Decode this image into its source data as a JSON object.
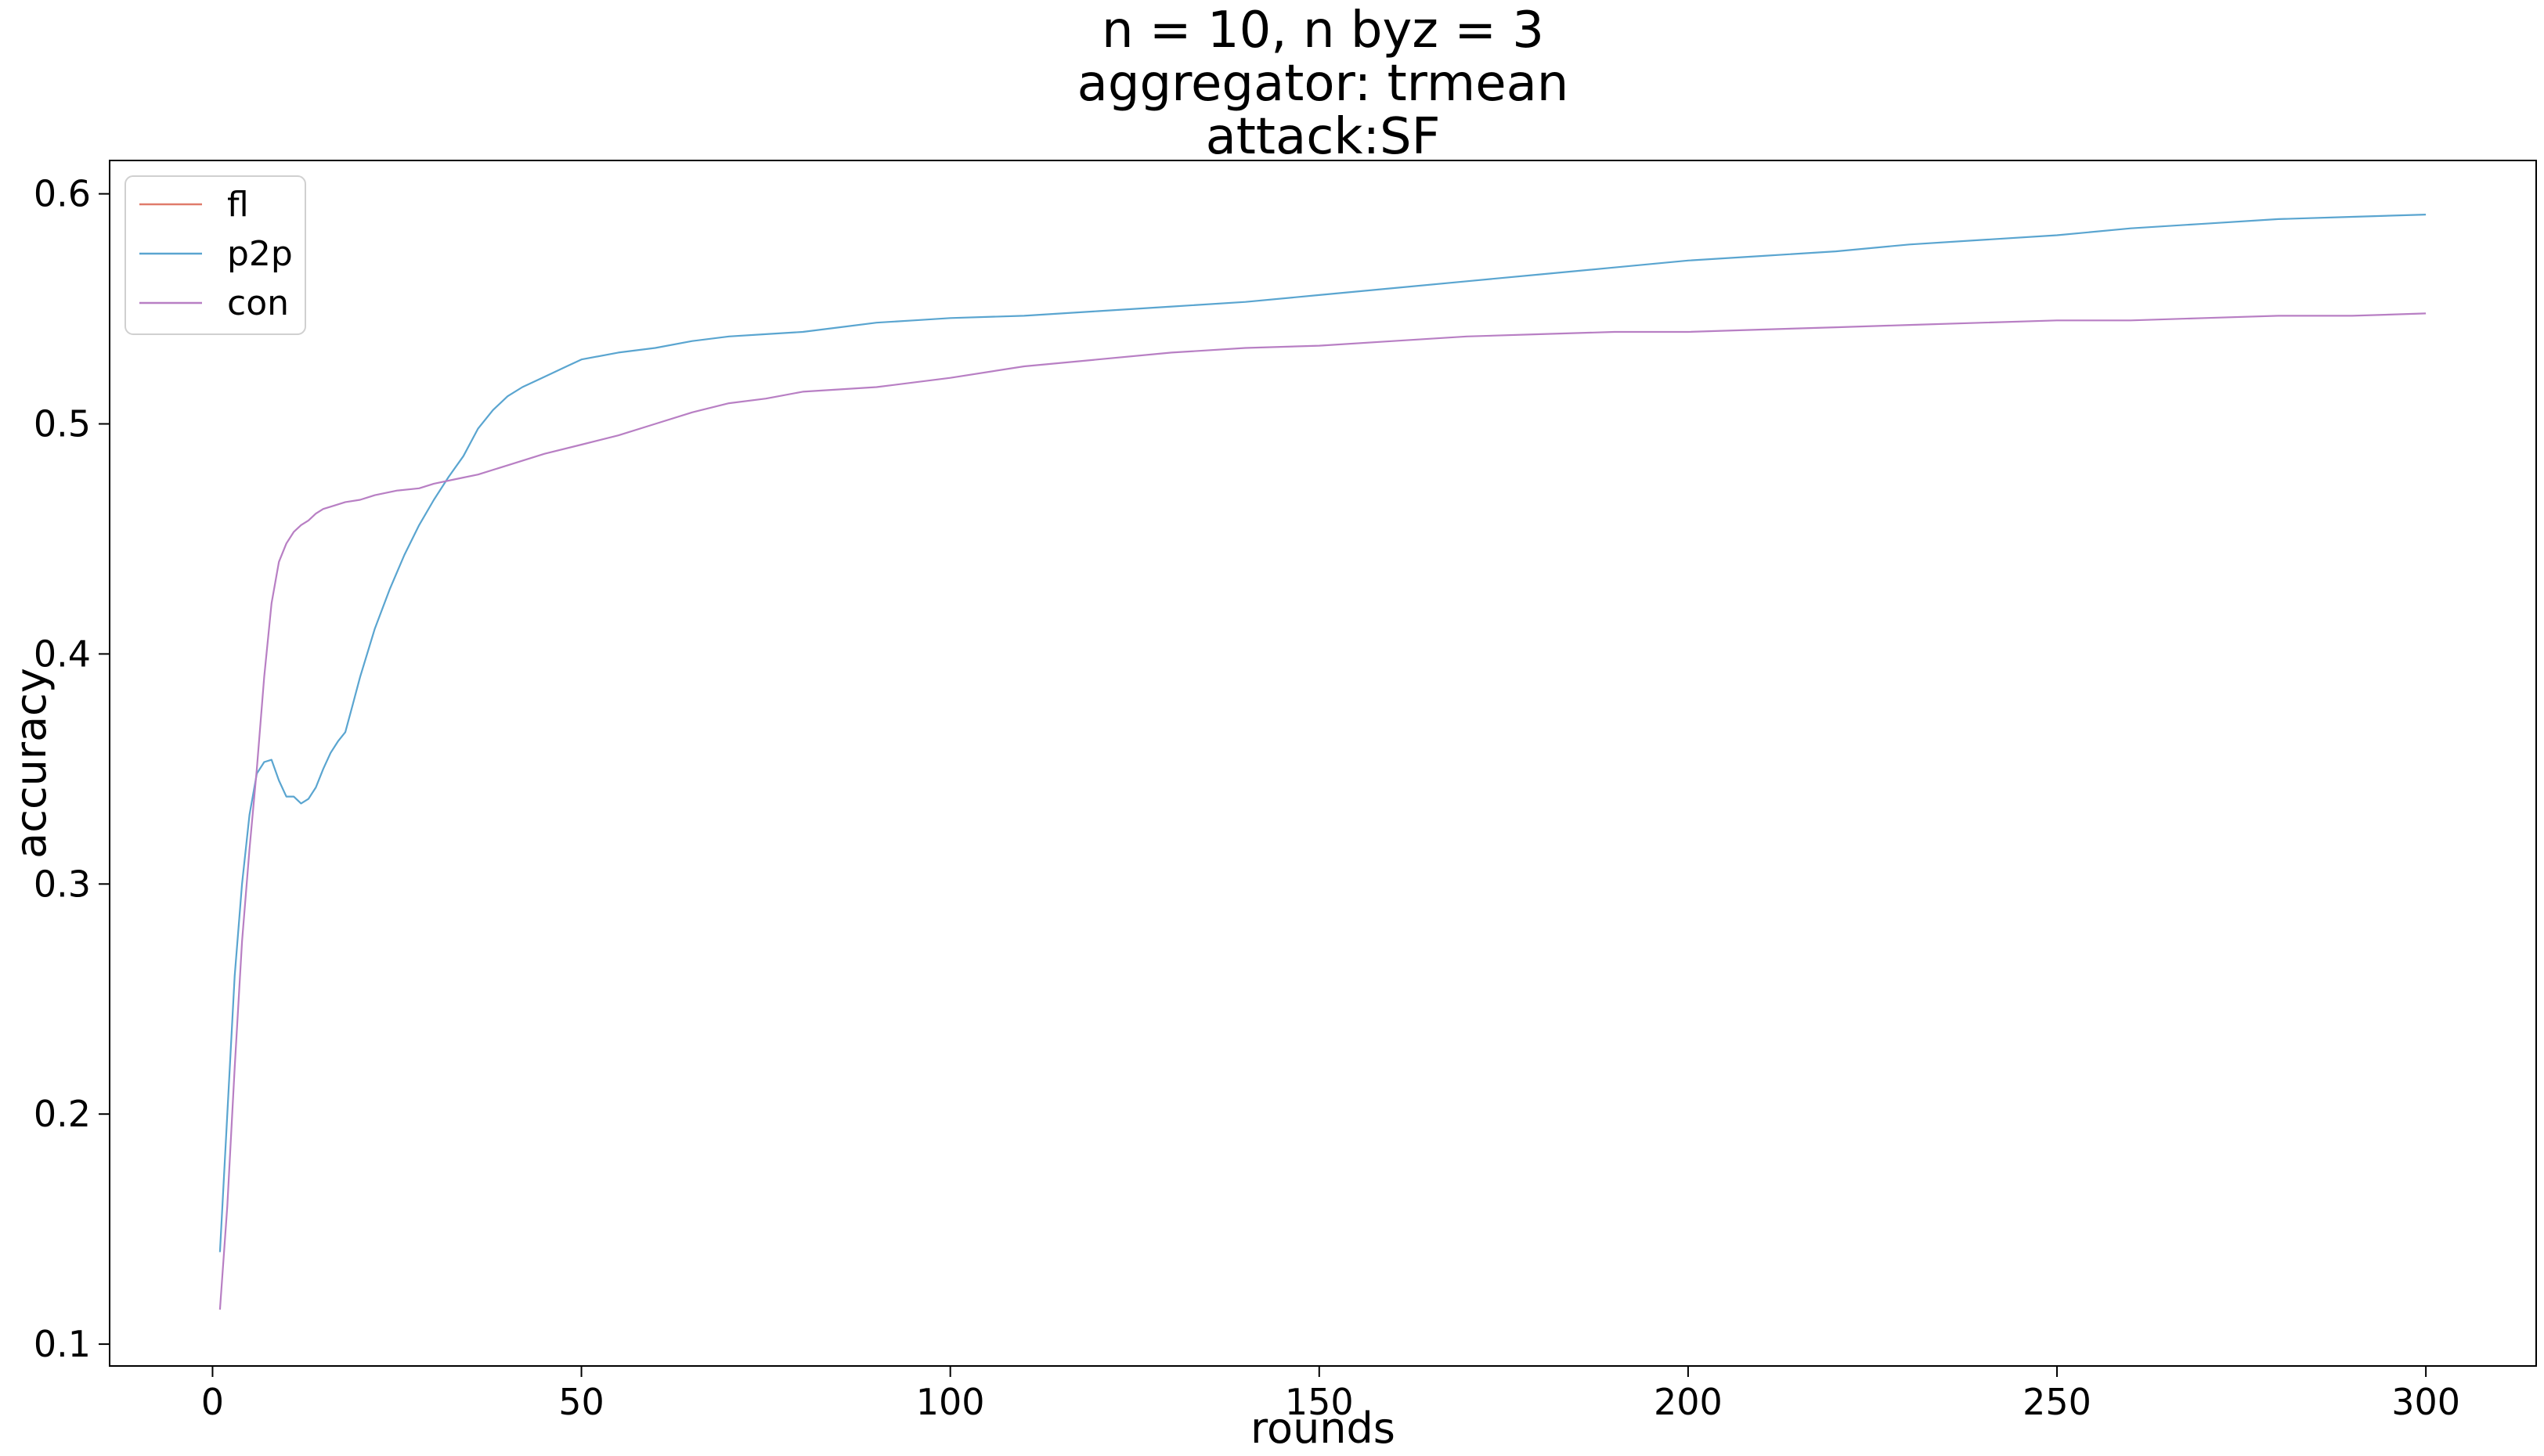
{
  "chart_data": {
    "type": "line",
    "title": [
      "n = 10, n byz = 3",
      "aggregator: trmean",
      "attack:SF"
    ],
    "xlabel": "rounds",
    "ylabel": "accuracy",
    "xlim": [
      -13.95,
      314.95
    ],
    "ylim": [
      0.0905,
      0.6145
    ],
    "xticks": [
      0,
      50,
      100,
      150,
      200,
      250,
      300
    ],
    "yticks": [
      0.1,
      0.2,
      0.3,
      0.4,
      0.5,
      0.6
    ],
    "grid": false,
    "legend": {
      "placement": "top-left"
    },
    "series": [
      {
        "name": "fl",
        "color": "#e07b6b",
        "x": [],
        "y": []
      },
      {
        "name": "p2p",
        "color": "#5aa5d0",
        "x": [
          1,
          2,
          3,
          4,
          5,
          6,
          7,
          8,
          9,
          10,
          11,
          12,
          13,
          14,
          15,
          16,
          17,
          18,
          19,
          20,
          22,
          24,
          26,
          28,
          30,
          32,
          34,
          36,
          38,
          40,
          42,
          44,
          46,
          48,
          50,
          55,
          60,
          65,
          70,
          75,
          80,
          85,
          90,
          95,
          100,
          110,
          120,
          130,
          140,
          150,
          160,
          170,
          180,
          190,
          200,
          210,
          220,
          230,
          240,
          250,
          260,
          270,
          280,
          290,
          300
        ],
        "y": [
          0.14,
          0.2,
          0.26,
          0.3,
          0.33,
          0.348,
          0.353,
          0.354,
          0.345,
          0.338,
          0.338,
          0.335,
          0.337,
          0.342,
          0.35,
          0.357,
          0.362,
          0.366,
          0.378,
          0.39,
          0.411,
          0.428,
          0.443,
          0.456,
          0.467,
          0.477,
          0.486,
          0.498,
          0.506,
          0.512,
          0.516,
          0.519,
          0.522,
          0.525,
          0.528,
          0.531,
          0.533,
          0.536,
          0.538,
          0.539,
          0.54,
          0.542,
          0.544,
          0.545,
          0.546,
          0.547,
          0.549,
          0.551,
          0.553,
          0.556,
          0.559,
          0.562,
          0.565,
          0.568,
          0.571,
          0.573,
          0.575,
          0.578,
          0.58,
          0.582,
          0.585,
          0.587,
          0.589,
          0.59,
          0.591
        ]
      },
      {
        "name": "con",
        "color": "#b87fc4",
        "x": [
          1,
          2,
          3,
          4,
          5,
          6,
          7,
          8,
          9,
          10,
          11,
          12,
          13,
          14,
          15,
          16,
          18,
          20,
          22,
          25,
          28,
          30,
          33,
          36,
          40,
          45,
          50,
          55,
          60,
          65,
          70,
          75,
          80,
          90,
          100,
          110,
          120,
          130,
          140,
          150,
          160,
          170,
          180,
          190,
          200,
          210,
          220,
          230,
          240,
          250,
          260,
          270,
          280,
          290,
          300
        ],
        "y": [
          0.115,
          0.16,
          0.22,
          0.275,
          0.315,
          0.35,
          0.39,
          0.422,
          0.44,
          0.448,
          0.453,
          0.456,
          0.458,
          0.461,
          0.463,
          0.464,
          0.466,
          0.467,
          0.469,
          0.471,
          0.472,
          0.474,
          0.476,
          0.478,
          0.482,
          0.487,
          0.491,
          0.495,
          0.5,
          0.505,
          0.509,
          0.511,
          0.514,
          0.516,
          0.52,
          0.525,
          0.528,
          0.531,
          0.533,
          0.534,
          0.536,
          0.538,
          0.539,
          0.54,
          0.54,
          0.541,
          0.542,
          0.543,
          0.544,
          0.545,
          0.545,
          0.546,
          0.547,
          0.547,
          0.548
        ]
      }
    ]
  }
}
